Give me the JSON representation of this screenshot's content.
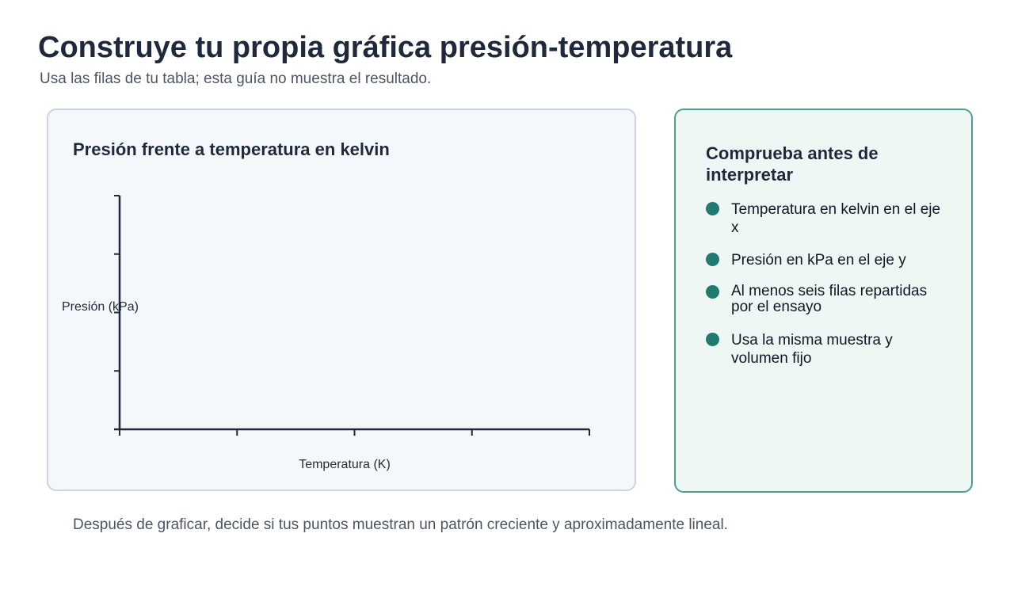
{
  "page": {
    "title": "Construye tu propia gráfica presión-temperatura",
    "subtitle": "Usa las filas de tu tabla; esta guía no muestra el resultado.",
    "footer_note": "Después de graficar, decide si tus puntos muestran un patrón creciente y aproximadamente lineal."
  },
  "chart_data": {
    "type": "scatter",
    "title": "Presión frente a temperatura en kelvin",
    "xlabel": "Temperatura (K)",
    "ylabel": "Presión (kPa)",
    "x_tick_count": 5,
    "y_tick_count": 5,
    "x_tick_labels": [],
    "y_tick_labels": [],
    "series": [],
    "grid": false,
    "legend": "none"
  },
  "checklist": {
    "title": "Comprueba antes de interpretar",
    "items": [
      "Temperatura en kelvin en el eje x",
      "Presión en kPa en el eje y",
      "Al menos seis filas repartidas por el ensayo",
      "Usa la misma muestra y volumen fijo"
    ]
  },
  "colors": {
    "accent": "#1f7a70",
    "accent_border": "#4d9e8e",
    "chart_card_bg": "#f4f8fb",
    "check_card_bg": "#eef7f4",
    "axis": "#1f2937",
    "title_text": "#1e293b",
    "muted_text": "#4b5563"
  }
}
